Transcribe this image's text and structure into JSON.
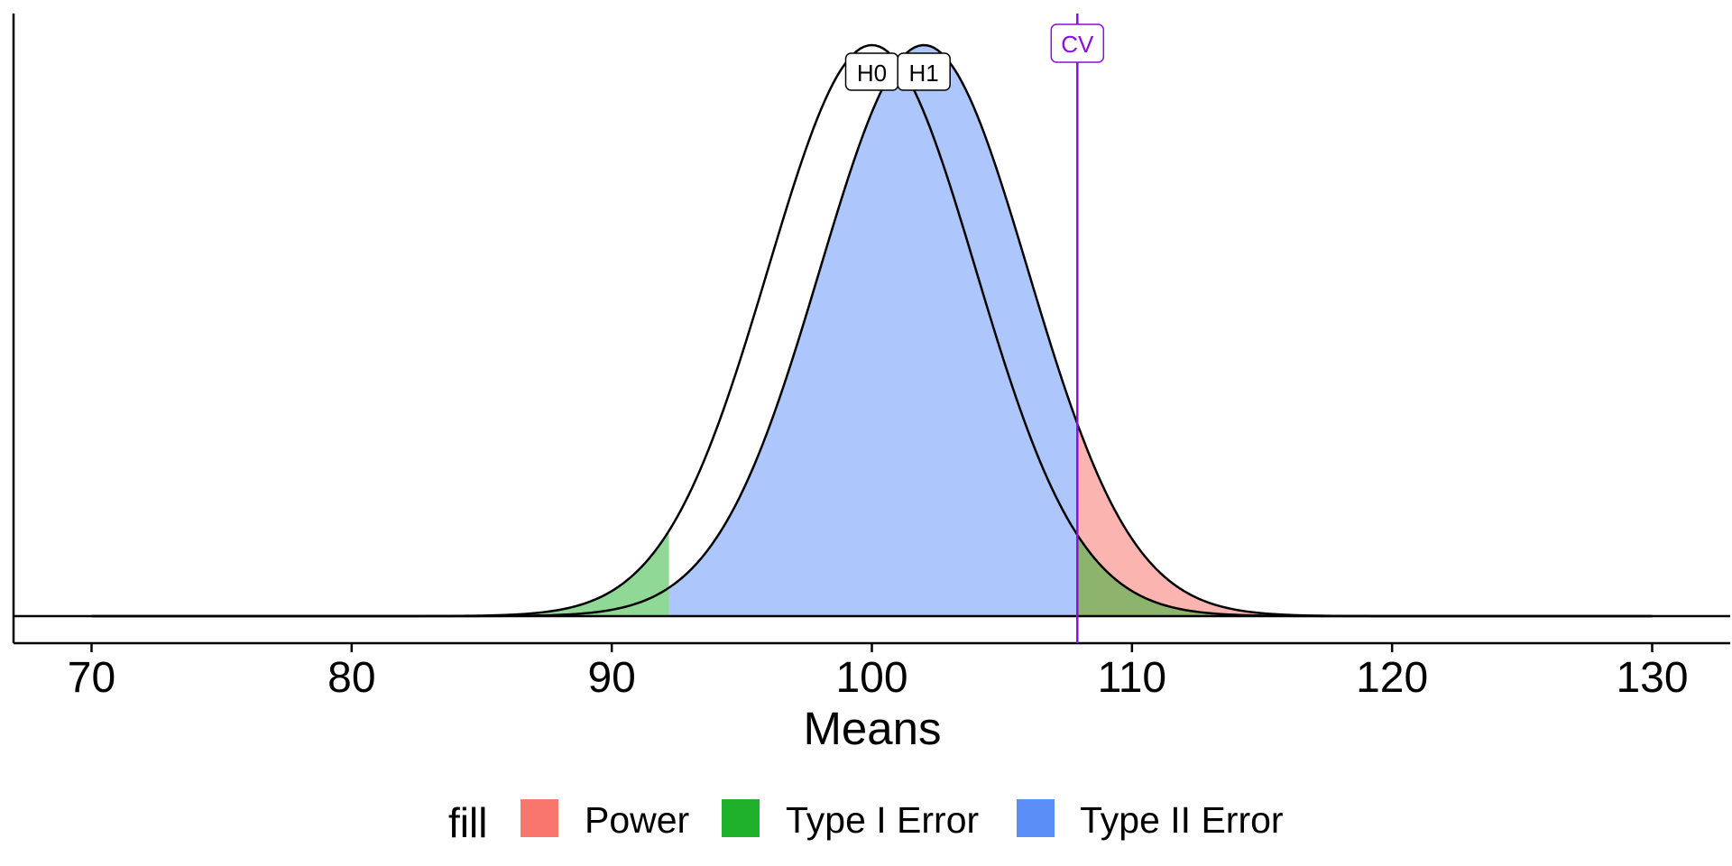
{
  "chart_data": {
    "type": "area",
    "xlabel": "Means",
    "ylabel": "",
    "xlim": [
      67,
      133
    ],
    "x_ticks": [
      "70",
      "80",
      "90",
      "100",
      "110",
      "120",
      "130"
    ],
    "x_tick_values": [
      70,
      80,
      90,
      100,
      110,
      120,
      130
    ],
    "y_ticks_shown": false,
    "grid": false,
    "distributions": [
      {
        "label": "H0",
        "mean": 100,
        "sd": 4.0,
        "x_range": [
          70,
          130
        ]
      },
      {
        "label": "H1",
        "mean": 102,
        "sd": 4.0,
        "x_range": [
          70,
          130
        ]
      }
    ],
    "critical_values": {
      "lower": 92.2,
      "upper": 107.9
    },
    "cv_label": "CV",
    "cv_color": "#8A0FE0",
    "series": [
      {
        "name": "Power",
        "color": "#F8766D",
        "region": "H1 density above upper critical value"
      },
      {
        "name": "Type I Error",
        "color": "#1FB12C",
        "region": "H0 density outside critical values"
      },
      {
        "name": "Type II Error",
        "color": "#5B8EF7",
        "region": "H1 density between critical values"
      }
    ],
    "legend": {
      "title": "fill",
      "position": "bottom",
      "items": [
        {
          "label": "Power",
          "color": "#F8766D"
        },
        {
          "label": "Type I Error",
          "color": "#1FB12C"
        },
        {
          "label": "Type II Error",
          "color": "#5B8EF7"
        }
      ]
    }
  }
}
